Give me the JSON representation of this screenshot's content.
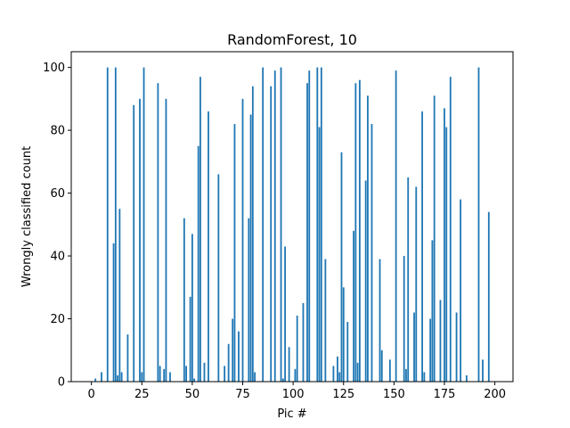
{
  "chart_data": {
    "type": "bar",
    "title": "RandomForest, 10",
    "xlabel": "Pic #",
    "ylabel": "Wrongly classified count",
    "xlim": [
      -10,
      209
    ],
    "ylim": [
      0,
      105
    ],
    "xticks": [
      0,
      25,
      50,
      75,
      100,
      125,
      150,
      175,
      200
    ],
    "yticks": [
      0,
      20,
      40,
      60,
      80,
      100
    ],
    "grid": false,
    "color": "#1f77b4",
    "points": [
      {
        "x": 2,
        "y": 1
      },
      {
        "x": 5,
        "y": 3
      },
      {
        "x": 8,
        "y": 100
      },
      {
        "x": 11,
        "y": 44
      },
      {
        "x": 12,
        "y": 100
      },
      {
        "x": 13,
        "y": 2
      },
      {
        "x": 14,
        "y": 55
      },
      {
        "x": 15,
        "y": 3
      },
      {
        "x": 18,
        "y": 15
      },
      {
        "x": 21,
        "y": 88
      },
      {
        "x": 24,
        "y": 90
      },
      {
        "x": 25,
        "y": 3
      },
      {
        "x": 26,
        "y": 100
      },
      {
        "x": 33,
        "y": 95
      },
      {
        "x": 34,
        "y": 5
      },
      {
        "x": 36,
        "y": 4
      },
      {
        "x": 37,
        "y": 90
      },
      {
        "x": 39,
        "y": 3
      },
      {
        "x": 46,
        "y": 52
      },
      {
        "x": 47,
        "y": 5
      },
      {
        "x": 49,
        "y": 27
      },
      {
        "x": 50,
        "y": 47
      },
      {
        "x": 51,
        "y": 1
      },
      {
        "x": 53,
        "y": 75
      },
      {
        "x": 54,
        "y": 97
      },
      {
        "x": 56,
        "y": 6
      },
      {
        "x": 58,
        "y": 86
      },
      {
        "x": 63,
        "y": 66
      },
      {
        "x": 66,
        "y": 5
      },
      {
        "x": 68,
        "y": 12
      },
      {
        "x": 70,
        "y": 20
      },
      {
        "x": 71,
        "y": 82
      },
      {
        "x": 73,
        "y": 16
      },
      {
        "x": 75,
        "y": 90
      },
      {
        "x": 78,
        "y": 52
      },
      {
        "x": 79,
        "y": 85
      },
      {
        "x": 80,
        "y": 94
      },
      {
        "x": 81,
        "y": 3
      },
      {
        "x": 85,
        "y": 100
      },
      {
        "x": 89,
        "y": 94
      },
      {
        "x": 91,
        "y": 99
      },
      {
        "x": 94,
        "y": 100
      },
      {
        "x": 95,
        "y": 1
      },
      {
        "x": 96,
        "y": 43
      },
      {
        "x": 98,
        "y": 11
      },
      {
        "x": 101,
        "y": 4
      },
      {
        "x": 102,
        "y": 21
      },
      {
        "x": 105,
        "y": 25
      },
      {
        "x": 107,
        "y": 95
      },
      {
        "x": 108,
        "y": 99
      },
      {
        "x": 112,
        "y": 100
      },
      {
        "x": 113,
        "y": 81
      },
      {
        "x": 114,
        "y": 100
      },
      {
        "x": 116,
        "y": 39
      },
      {
        "x": 120,
        "y": 5
      },
      {
        "x": 122,
        "y": 8
      },
      {
        "x": 123,
        "y": 3
      },
      {
        "x": 124,
        "y": 73
      },
      {
        "x": 125,
        "y": 30
      },
      {
        "x": 127,
        "y": 19
      },
      {
        "x": 130,
        "y": 48
      },
      {
        "x": 131,
        "y": 95
      },
      {
        "x": 132,
        "y": 6
      },
      {
        "x": 133,
        "y": 96
      },
      {
        "x": 136,
        "y": 64
      },
      {
        "x": 137,
        "y": 91
      },
      {
        "x": 139,
        "y": 82
      },
      {
        "x": 143,
        "y": 39
      },
      {
        "x": 144,
        "y": 10
      },
      {
        "x": 148,
        "y": 7
      },
      {
        "x": 151,
        "y": 99
      },
      {
        "x": 155,
        "y": 40
      },
      {
        "x": 156,
        "y": 4
      },
      {
        "x": 157,
        "y": 65
      },
      {
        "x": 160,
        "y": 22
      },
      {
        "x": 161,
        "y": 62
      },
      {
        "x": 164,
        "y": 86
      },
      {
        "x": 165,
        "y": 3
      },
      {
        "x": 168,
        "y": 20
      },
      {
        "x": 169,
        "y": 45
      },
      {
        "x": 170,
        "y": 91
      },
      {
        "x": 173,
        "y": 26
      },
      {
        "x": 175,
        "y": 87
      },
      {
        "x": 176,
        "y": 81
      },
      {
        "x": 178,
        "y": 97
      },
      {
        "x": 181,
        "y": 22
      },
      {
        "x": 183,
        "y": 58
      },
      {
        "x": 186,
        "y": 2
      },
      {
        "x": 192,
        "y": 100
      },
      {
        "x": 194,
        "y": 7
      },
      {
        "x": 197,
        "y": 54
      }
    ]
  }
}
